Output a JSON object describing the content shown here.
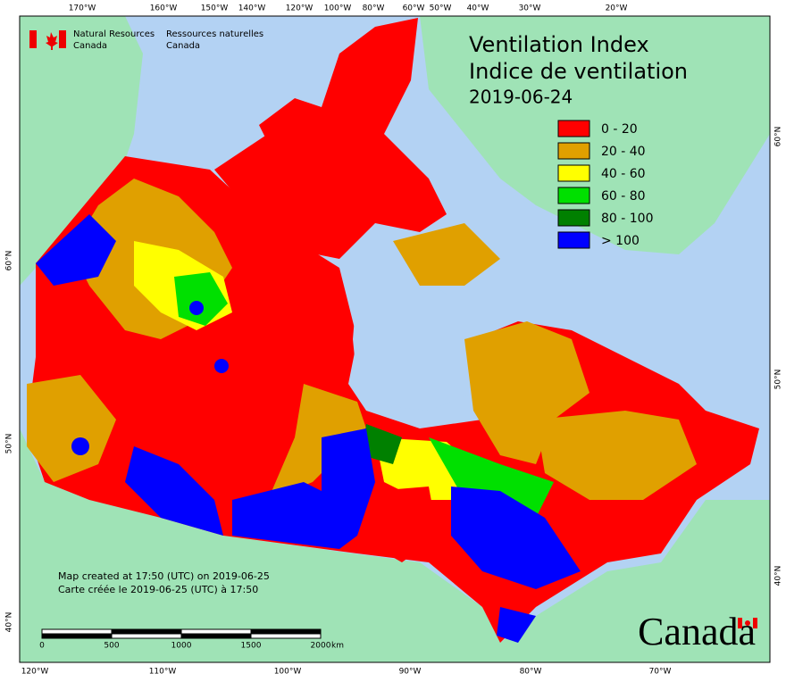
{
  "title": {
    "english": "Ventilation Index",
    "french": "Indice de ventilation",
    "date": "2019-06-24"
  },
  "agency": {
    "english": [
      "Natural Resources",
      "Canada"
    ],
    "french": [
      "Ressources naturelles",
      "Canada"
    ]
  },
  "legend": [
    {
      "label": "0 - 20",
      "color": "#ff0000"
    },
    {
      "label": "20 - 40",
      "color": "#e0a000"
    },
    {
      "label": "40 - 60",
      "color": "#ffff00"
    },
    {
      "label": "60 - 80",
      "color": "#00e000"
    },
    {
      "label": "80 - 100",
      "color": "#008000"
    },
    {
      "label": "> 100",
      "color": "#0000ff"
    }
  ],
  "top_axis": [
    "170°W",
    "160°W",
    "150°W",
    "140°W",
    "120°W",
    "100°W",
    "80°W",
    "60°W",
    "50°W",
    "40°W",
    "30°W",
    "20°W"
  ],
  "bottom_axis": [
    "120°W",
    "110°W",
    "100°W",
    "90°W",
    "80°W",
    "70°W"
  ],
  "left_axis": [
    "60°N",
    "50°N",
    "40°N"
  ],
  "right_axis": [
    "60°N",
    "50°N",
    "40°N"
  ],
  "credits": [
    "Map created at 17:50 (UTC) on 2019-06-25",
    "Carte créée le 2019-06-25 (UTC) à 17:50"
  ],
  "scale_bar": {
    "labels": [
      0,
      500,
      1000,
      1500,
      2000
    ],
    "unit": "km"
  },
  "wordmark": "Canada"
}
